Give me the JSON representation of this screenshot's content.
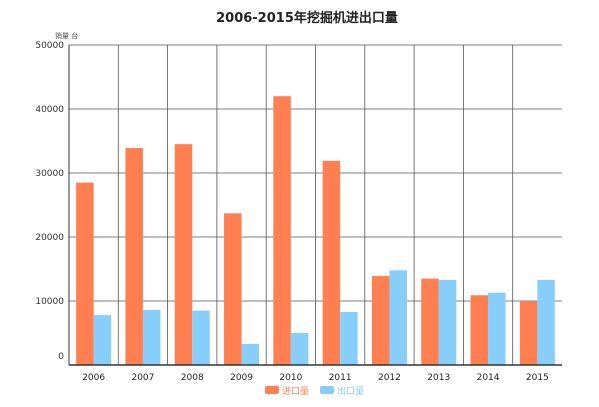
{
  "chart_data": {
    "type": "bar",
    "title": "2006-2015年挖掘机进出口量",
    "unit_label": "销量 台",
    "categories": [
      "2006",
      "2007",
      "2008",
      "2009",
      "2010",
      "2011",
      "2012",
      "2013",
      "2014",
      "2015"
    ],
    "series": [
      {
        "name": "进口量",
        "color": "#ff7f50",
        "values": [
          28500,
          33900,
          34500,
          23700,
          42000,
          31900,
          13900,
          13500,
          10900,
          9900
        ]
      },
      {
        "name": "出口量",
        "color": "#87cefa",
        "values": [
          7800,
          8600,
          8500,
          3300,
          5000,
          8300,
          14800,
          13300,
          11300,
          13300
        ]
      }
    ],
    "ylim": [
      0,
      50000
    ],
    "yticks": [
      0,
      10000,
      20000,
      30000,
      40000,
      50000
    ],
    "grid": true,
    "legend_position": "bottom-center"
  }
}
